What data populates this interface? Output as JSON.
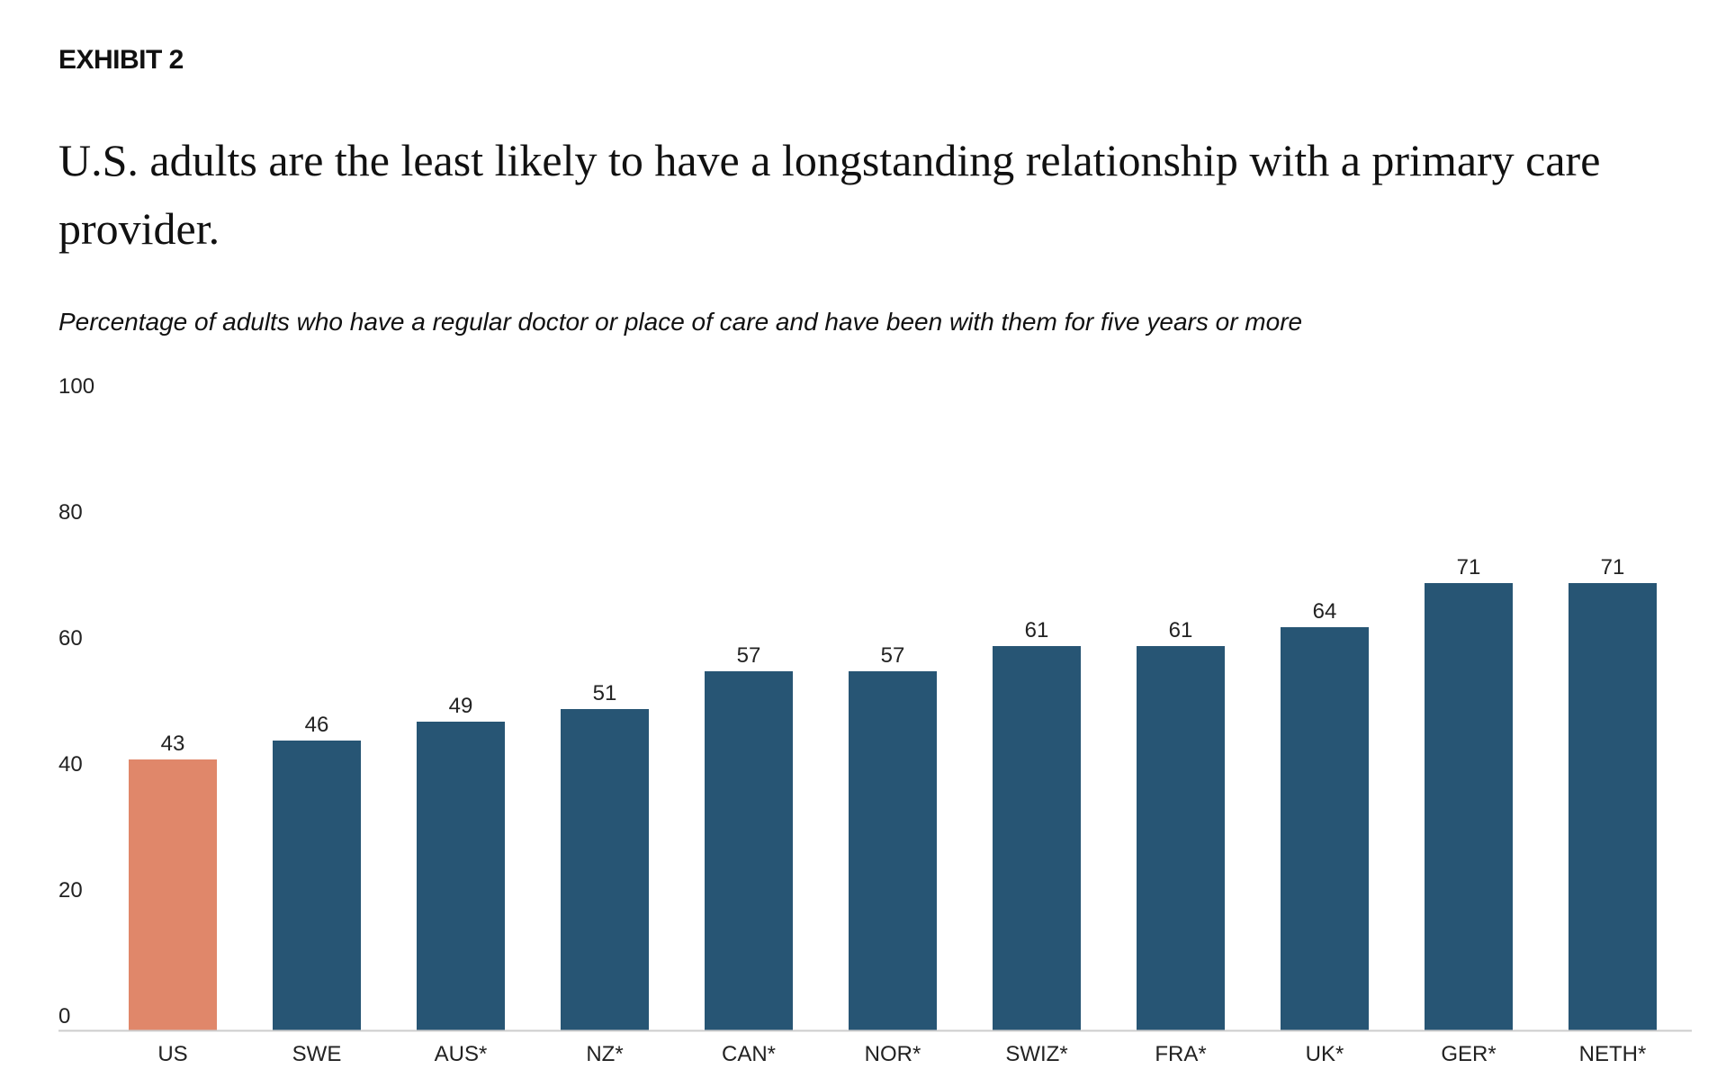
{
  "exhibit_label": "EXHIBIT 2",
  "title": "U.S. adults are the least likely to have a longstanding relationship with a primary care provider.",
  "subtitle": "Percentage of adults who have a regular doctor or place of care and have been with them for five years or more",
  "colors": {
    "highlight": "#E0876A",
    "default": "#275574",
    "axis": "#cccccc"
  },
  "chart_data": {
    "type": "bar",
    "categories": [
      "US",
      "SWE",
      "AUS*",
      "NZ*",
      "CAN*",
      "NOR*",
      "SWIZ*",
      "FRA*",
      "UK*",
      "GER*",
      "NETH*"
    ],
    "values": [
      43,
      46,
      49,
      51,
      57,
      57,
      61,
      61,
      64,
      71,
      71
    ],
    "highlight_index": 0,
    "ylim": [
      0,
      100
    ],
    "yticks": [
      0,
      20,
      40,
      60,
      80,
      100
    ],
    "grid": false,
    "legend": "none",
    "title": "U.S. adults are the least likely to have a longstanding relationship with a primary care provider.",
    "subtitle": "Percentage of adults who have a regular doctor or place of care and have been with them for five years or more",
    "xlabel": "",
    "ylabel": ""
  }
}
